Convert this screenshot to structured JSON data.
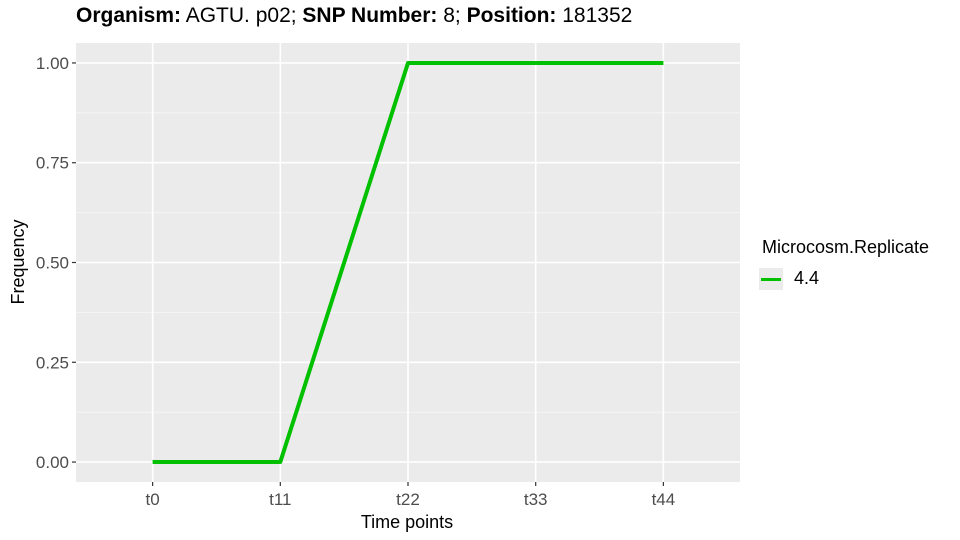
{
  "title": {
    "organism_label": "Organism:",
    "organism_value": " AGTU. p02; ",
    "snp_label": "SNP Number:",
    "snp_value": " 8; ",
    "position_label": "Position:",
    "position_value": " 181352"
  },
  "chart_data": {
    "type": "line",
    "xlabel": "Time points",
    "ylabel": "Frequency",
    "categories": [
      "t0",
      "t11",
      "t22",
      "t33",
      "t44"
    ],
    "ylim": [
      -0.05,
      1.05
    ],
    "yticks": [
      "0.00",
      "0.25",
      "0.50",
      "0.75",
      "1.00"
    ],
    "ytick_values": [
      0,
      0.25,
      0.5,
      0.75,
      1
    ],
    "grid": true,
    "legend_position": "right",
    "legend_title": "Microcosm.Replicate",
    "series": [
      {
        "name": "4.4",
        "color": "#00c000",
        "values": [
          0,
          0,
          1,
          1,
          1
        ]
      }
    ]
  }
}
